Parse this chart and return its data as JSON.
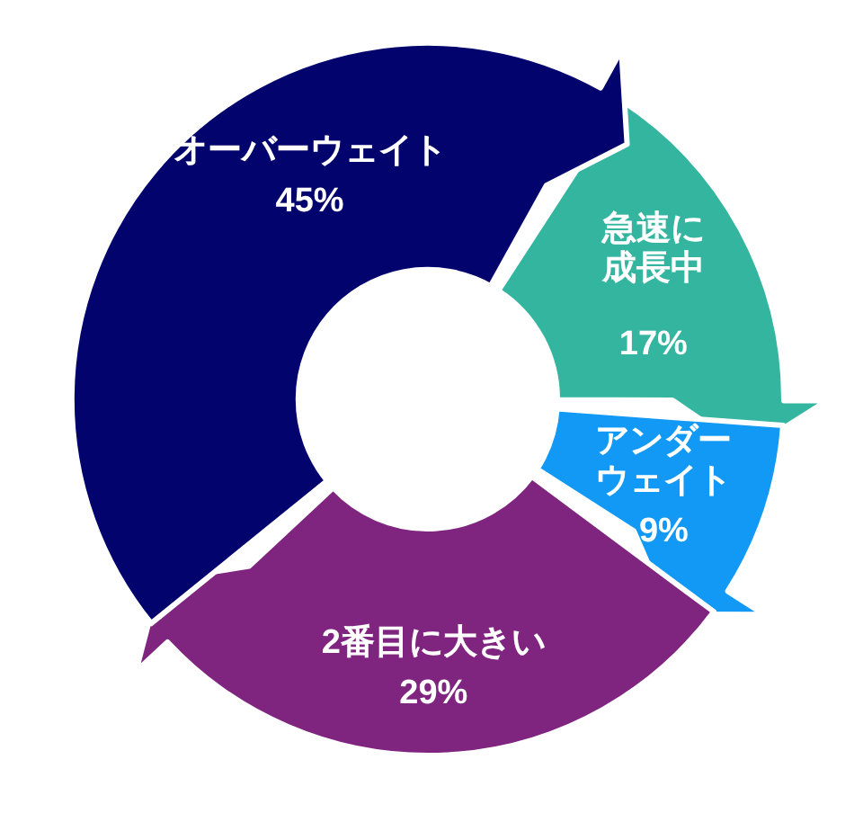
{
  "chart_data": {
    "type": "donut",
    "categories": [
      "急速に成長中",
      "アンダーウェイト",
      "2番目に大きい",
      "オーバーウェイト"
    ],
    "values": [
      17,
      9,
      29,
      45
    ],
    "colors": [
      "#33b59f",
      "#1199f5",
      "#7f2580",
      "#03036e"
    ],
    "value_labels": [
      "17%",
      "9%",
      "29%",
      "45%"
    ]
  }
}
